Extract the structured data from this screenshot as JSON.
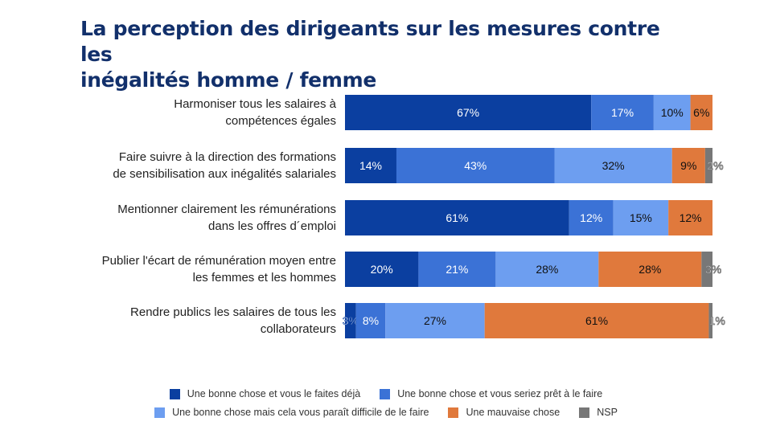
{
  "title_lines": [
    "La perception des dirigeants sur les mesures contre les",
    "inégalités homme / femme"
  ],
  "chart_data": {
    "type": "bar",
    "orientation": "horizontal",
    "stacked": true,
    "xlim": [
      0,
      100
    ],
    "categories": [
      [
        "Harmoniser tous les salaires à",
        "compétences égales"
      ],
      [
        "Faire suivre à la direction des formations",
        "de sensibilisation aux inégalités salariales"
      ],
      [
        "Mentionner clairement les rémunérations",
        "dans les offres d´emploi"
      ],
      [
        "Publier l'écart de rémunération moyen entre",
        "les femmes et les hommes"
      ],
      [
        "Rendre publics les salaires de tous les",
        "collaborateurs"
      ]
    ],
    "series": [
      {
        "name": "Une bonne chose et vous le faites déjà",
        "color": "#0b3fa0",
        "values": [
          67,
          14,
          61,
          20,
          3
        ]
      },
      {
        "name": "Une bonne chose et vous seriez prêt à le faire",
        "color": "#3b72d6",
        "values": [
          17,
          43,
          12,
          21,
          8
        ]
      },
      {
        "name": "Une bonne chose mais cela vous paraît difficile de le faire",
        "color": "#6d9ef0",
        "values": [
          10,
          32,
          15,
          28,
          27
        ]
      },
      {
        "name": "Une mauvaise chose",
        "color": "#e0793c",
        "values": [
          6,
          9,
          12,
          28,
          61
        ]
      },
      {
        "name": "NSP",
        "color": "#777777",
        "values": [
          0,
          2,
          0,
          3,
          1
        ]
      }
    ],
    "value_labels": [
      [
        "67%",
        "17%",
        "10%",
        "6%",
        ""
      ],
      [
        "14%",
        "43%",
        "32%",
        "9%",
        "2%"
      ],
      [
        "61%",
        "12%",
        "15%",
        "12%",
        ""
      ],
      [
        "20%",
        "21%",
        "28%",
        "28%",
        "3%"
      ],
      [
        "3%",
        "8%",
        "27%",
        "61%",
        "1%"
      ]
    ],
    "legend_rows": [
      [
        0,
        1
      ],
      [
        2,
        3,
        4
      ]
    ]
  }
}
